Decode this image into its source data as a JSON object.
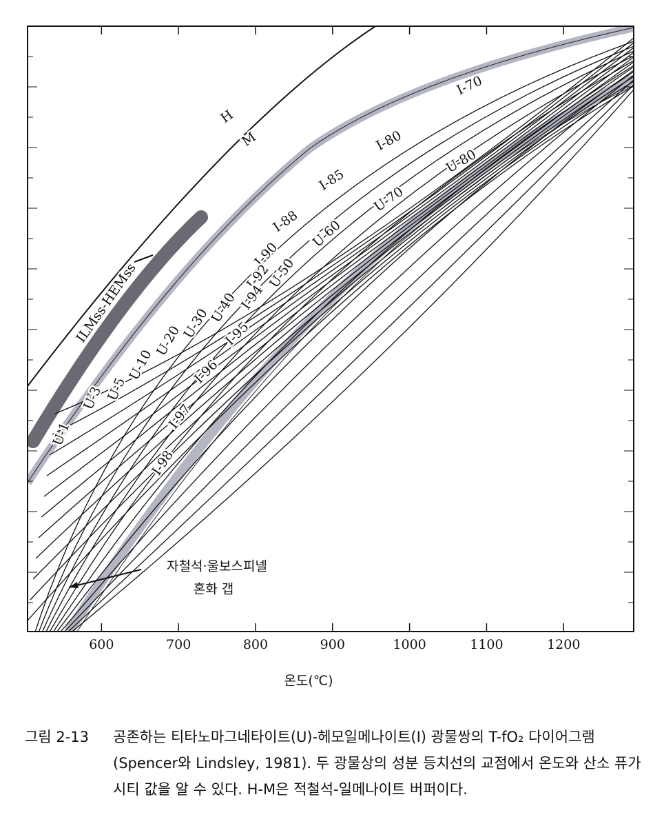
{
  "chart_data": {
    "type": "isopleth",
    "xlabel": "온도(℃)",
    "xlim": [
      504,
      1291
    ],
    "xticks": [
      600,
      700,
      800,
      900,
      1000,
      1100,
      1200
    ],
    "annotations": [
      "H",
      "M",
      "ILMss-HEMss",
      "I-70",
      "I-80",
      "I-85",
      "I-88",
      "I-90",
      "I-92",
      "I-94",
      "U-50",
      "U-60",
      "U-70",
      "U-80",
      "I-95",
      "I-96",
      "I-97",
      "I-98",
      "U-1",
      "U-3",
      "U-5",
      "U-10",
      "U-20",
      "U-30",
      "U-40",
      "자철석·울보스피넬",
      "혼화 갭"
    ]
  },
  "caption": {
    "label": "그림 2-13",
    "text": "공존하는 티타노마그네타이트(U)-헤모일메나이트(I) 광물쌍의 T-fO₂ 다이어그램(Spencer와 Lindsley, 1981). 두 광물상의 성분 등치선의 교점에서 온도와 산소 퓨가시티 값을 알 수 있다. H-M은 적철석-일메나이트 버퍼이다."
  }
}
